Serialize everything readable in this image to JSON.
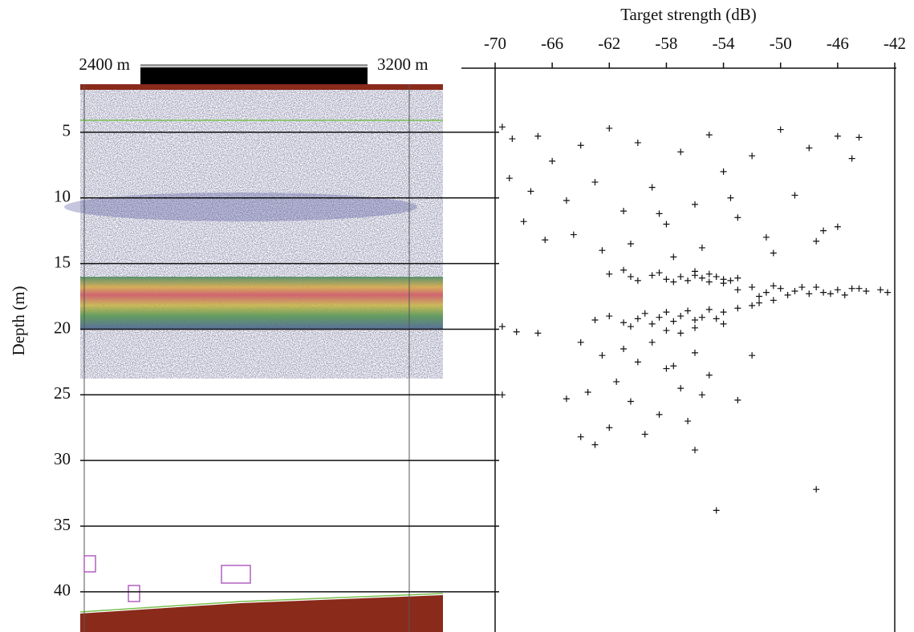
{
  "chart_data": {
    "type": "scatter",
    "title": "Target strength (dB)",
    "y_label": "Depth (m)",
    "annotations": [
      "2400 m",
      "3200 m"
    ],
    "xlim": [
      -70,
      -42
    ],
    "xticks": [
      -70,
      -66,
      -62,
      -58,
      -54,
      -50,
      -46,
      -42
    ],
    "ylim": [
      0,
      43
    ],
    "yticks": [
      5,
      10,
      15,
      20,
      25,
      30,
      35,
      40
    ],
    "y_inverted": true,
    "color": "#111111",
    "x": [
      -69.5,
      -68.8,
      -67,
      -66,
      -64,
      -62,
      -60,
      -57,
      -55,
      -52,
      -50,
      -48,
      -46,
      -45,
      -44.5,
      -69,
      -67.5,
      -65,
      -63,
      -61,
      -59,
      -58,
      -56,
      -54,
      -53,
      -51,
      -49,
      -47,
      -46,
      -68,
      -66.5,
      -64.5,
      -62.5,
      -60.5,
      -58.5,
      -57.5,
      -55.5,
      -53.5,
      -50.5,
      -47.5,
      -62,
      -60.5,
      -59,
      -58,
      -57,
      -56.5,
      -56,
      -55.5,
      -55,
      -54.5,
      -54,
      -53.5,
      -53,
      -58.5,
      -57.5,
      -56,
      -55,
      -54,
      -60,
      -61,
      -53,
      -52,
      -51,
      -50,
      -49,
      -48,
      -47.5,
      -47,
      -46,
      -45.5,
      -45,
      -44,
      -43,
      -42.5,
      -51.5,
      -50.5,
      -49.5,
      -48.5,
      -46.5,
      -44.5,
      -63,
      -62,
      -61,
      -60,
      -59.5,
      -59,
      -58.5,
      -58,
      -57.5,
      -57,
      -56.5,
      -56,
      -55.5,
      -55,
      -54.5,
      -54,
      -53,
      -52,
      -51.5,
      -50.5,
      -60.5,
      -58,
      -56,
      -54,
      -57,
      -69.5,
      -68.5,
      -67,
      -64,
      -62.5,
      -61,
      -60,
      -59,
      -58,
      -57.5,
      -56,
      -55,
      -65,
      -63.5,
      -61.5,
      -60.5,
      -58.5,
      -57,
      -55.5,
      -53,
      -64,
      -62,
      -59.5,
      -56.5,
      -52,
      -69.5,
      -47.5,
      -56,
      -54.5,
      -63
    ],
    "values": [
      4.6,
      5.5,
      5.3,
      7.2,
      6.0,
      4.7,
      5.8,
      6.5,
      5.2,
      6.8,
      4.8,
      6.2,
      5.3,
      7.0,
      5.4,
      8.5,
      9.5,
      10.2,
      8.8,
      11.0,
      9.2,
      12.0,
      10.5,
      8.0,
      11.5,
      13.0,
      9.8,
      12.5,
      12.2,
      11.8,
      13.2,
      12.8,
      14.0,
      13.5,
      11.2,
      14.5,
      13.8,
      10.0,
      14.2,
      13.3,
      15.8,
      16.0,
      15.9,
      16.2,
      16.0,
      16.3,
      15.9,
      16.1,
      16.4,
      16.0,
      16.2,
      16.3,
      16.1,
      15.7,
      16.4,
      15.6,
      15.8,
      16.5,
      16.3,
      15.5,
      17.0,
      16.8,
      17.2,
      16.9,
      17.1,
      17.3,
      16.8,
      17.2,
      17.0,
      17.4,
      16.9,
      17.1,
      17.0,
      17.2,
      17.5,
      16.7,
      17.4,
      16.8,
      17.3,
      16.9,
      19.3,
      19.0,
      19.5,
      19.2,
      18.8,
      19.6,
      19.1,
      18.7,
      19.4,
      19.0,
      18.6,
      19.3,
      19.1,
      18.5,
      19.2,
      18.7,
      18.4,
      18.2,
      18.0,
      17.8,
      19.8,
      20.1,
      19.9,
      19.6,
      20.3,
      19.8,
      20.2,
      20.3,
      21.0,
      22.0,
      21.5,
      22.5,
      21.0,
      23.0,
      22.8,
      21.8,
      23.5,
      25.3,
      24.8,
      24.0,
      25.5,
      26.5,
      24.5,
      25.0,
      25.4,
      28.2,
      27.5,
      28.0,
      27.0,
      22.0,
      25.0,
      32.2,
      29.2,
      33.8,
      28.8
    ]
  }
}
